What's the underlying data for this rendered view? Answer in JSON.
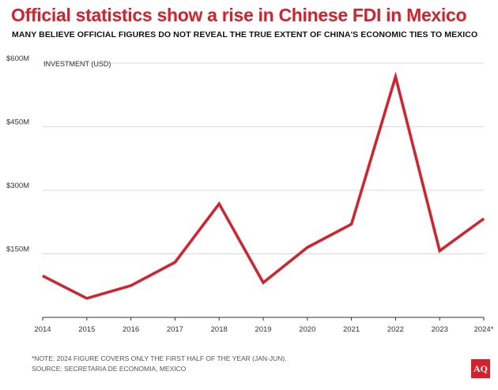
{
  "title": "Official statistics show a rise in Chinese FDI in Mexico",
  "subtitle": "MANY BELIEVE OFFICIAL FIGURES DO NOT REVEAL THE TRUE EXTENT OF CHINA'S ECONOMIC TIES TO MEXICO",
  "footer": {
    "note": "*NOTE: 2024 FIGURE COVERS ONLY THE FIRST HALF OF THE YEAR (JAN-JUN).",
    "source": "SOURCE: SECRETARIA DE ECONOMIA, MEXICO"
  },
  "logo": "AQ",
  "colors": {
    "accent": "#d81f2a",
    "text": "#111111",
    "grid": "#d9d9d9"
  },
  "chart_data": {
    "type": "line",
    "ylabel": "INVESTMENT (USD)",
    "x": [
      "2014",
      "2015",
      "2016",
      "2017",
      "2018",
      "2019",
      "2020",
      "2021",
      "2022",
      "2023",
      "2024*"
    ],
    "ylim": [
      0,
      600
    ],
    "yticks": [
      150,
      300,
      450,
      600
    ],
    "ytick_labels": [
      "$150M",
      "$300M",
      "$450M",
      "$600M"
    ],
    "grid": true,
    "series": [
      {
        "values": [
          98,
          45,
          75,
          130,
          268,
          82,
          165,
          220,
          568,
          157,
          233
        ],
        "color": "#d81f2a"
      }
    ]
  }
}
